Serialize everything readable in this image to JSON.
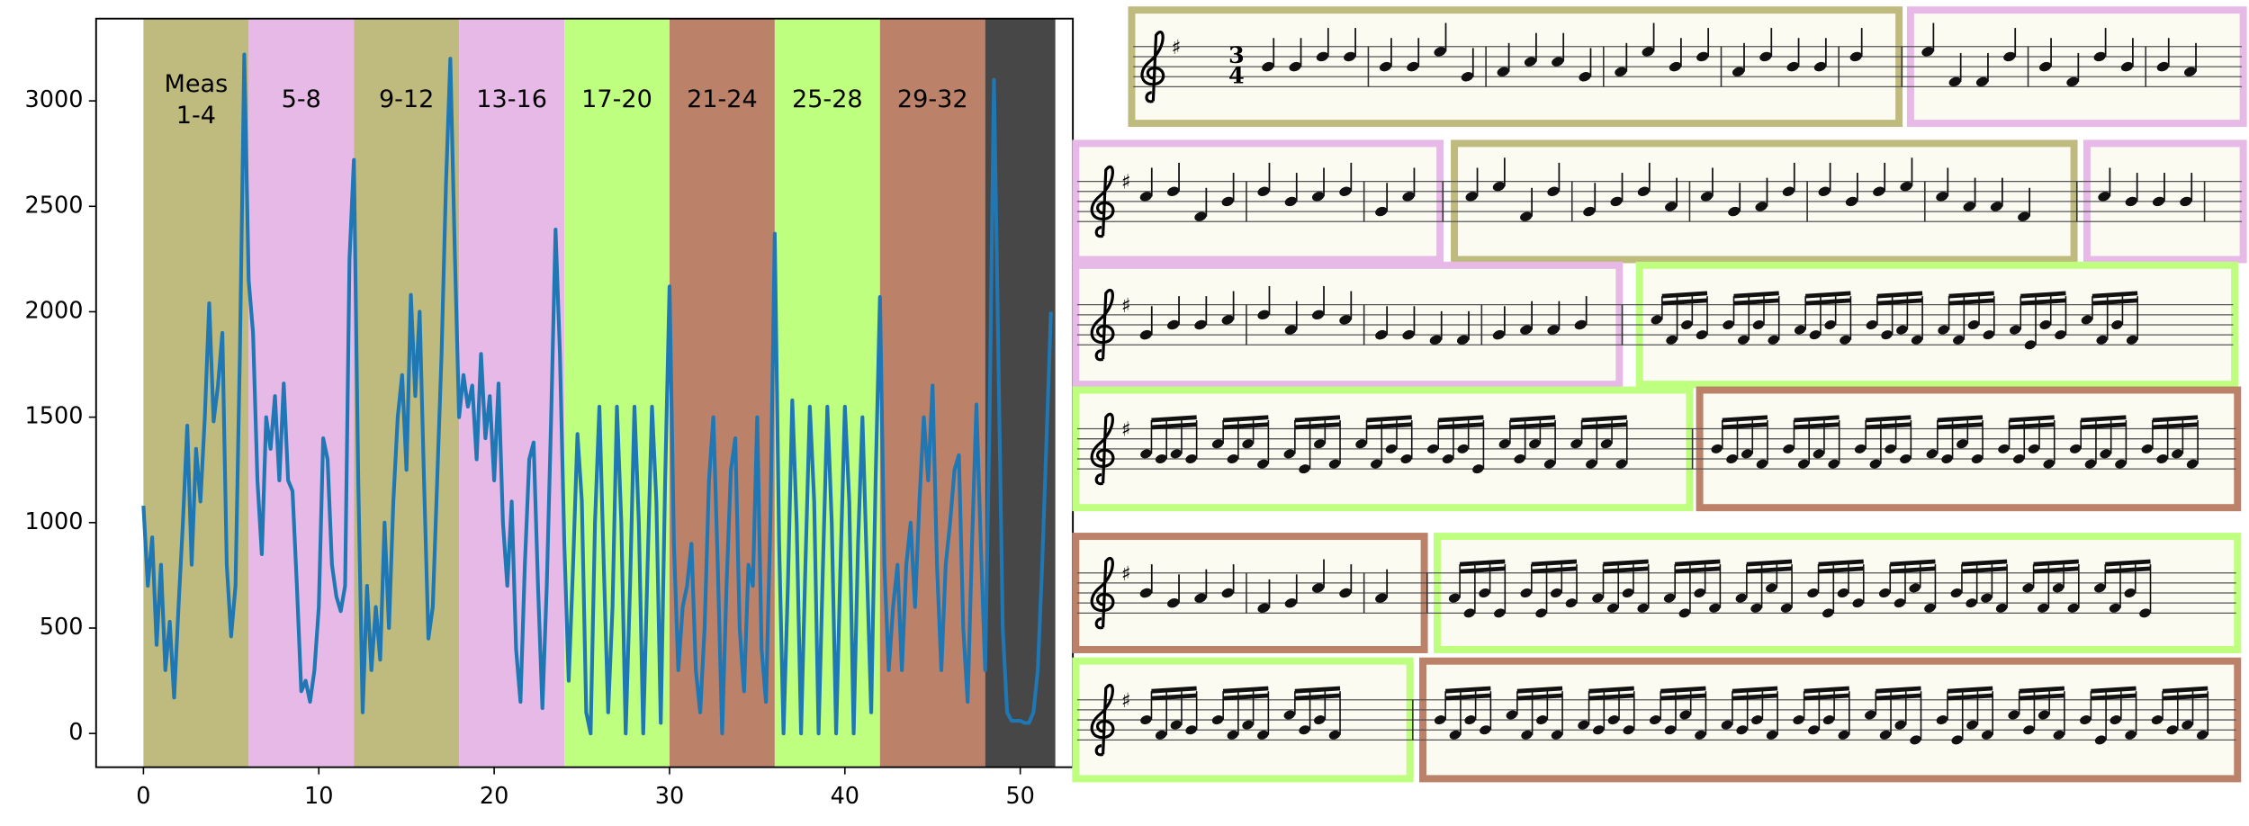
{
  "chart_data": {
    "type": "line",
    "xlim": [
      -2.7,
      53
    ],
    "ylim": [
      -160,
      3390
    ],
    "xticks": [
      0,
      10,
      20,
      30,
      40,
      50
    ],
    "yticks": [
      0,
      500,
      1000,
      1500,
      2000,
      2500,
      3000
    ],
    "bands": [
      {
        "start": 0,
        "end": 6,
        "label": "Meas\n1-4",
        "color": "#bfbb7e"
      },
      {
        "start": 6,
        "end": 12,
        "label": "5-8",
        "color": "#e6b9e6"
      },
      {
        "start": 12,
        "end": 18,
        "label": "9-12",
        "color": "#bfbb7e"
      },
      {
        "start": 18,
        "end": 24,
        "label": "13-16",
        "color": "#e6b9e6"
      },
      {
        "start": 24,
        "end": 30,
        "label": "17-20",
        "color": "#bfff7f"
      },
      {
        "start": 30,
        "end": 36,
        "label": "21-24",
        "color": "#bc8169"
      },
      {
        "start": 36,
        "end": 42,
        "label": "25-28",
        "color": "#bfff7f"
      },
      {
        "start": 42,
        "end": 48,
        "label": "29-32",
        "color": "#bc8169"
      },
      {
        "start": 48,
        "end": 52,
        "color": "#474747"
      }
    ],
    "x": [
      0,
      0.25,
      0.5,
      0.75,
      1,
      1.25,
      1.5,
      1.75,
      2,
      2.25,
      2.5,
      2.75,
      3,
      3.25,
      3.5,
      3.75,
      4,
      4.25,
      4.5,
      4.75,
      5,
      5.25,
      5.5,
      5.75,
      6,
      6.25,
      6.5,
      6.75,
      7,
      7.25,
      7.5,
      7.75,
      8,
      8.25,
      8.5,
      8.75,
      9,
      9.25,
      9.5,
      9.75,
      10,
      10.25,
      10.5,
      10.75,
      11,
      11.25,
      11.5,
      11.75,
      12,
      12.25,
      12.5,
      12.75,
      13,
      13.25,
      13.5,
      13.75,
      14,
      14.25,
      14.5,
      14.75,
      15,
      15.25,
      15.5,
      15.75,
      16,
      16.25,
      16.5,
      16.75,
      17,
      17.25,
      17.5,
      17.75,
      18,
      18.25,
      18.5,
      18.75,
      19,
      19.25,
      19.5,
      19.75,
      20,
      20.25,
      20.5,
      20.75,
      21,
      21.25,
      21.5,
      21.75,
      22,
      22.25,
      22.5,
      22.75,
      23,
      23.25,
      23.5,
      23.75,
      24,
      24.25,
      24.5,
      24.75,
      25,
      25.25,
      25.5,
      25.75,
      26,
      26.25,
      26.5,
      26.75,
      27,
      27.25,
      27.5,
      27.75,
      28,
      28.25,
      28.5,
      28.75,
      29,
      29.25,
      29.5,
      29.75,
      30,
      30.25,
      30.5,
      30.75,
      31,
      31.25,
      31.5,
      31.75,
      32,
      32.25,
      32.5,
      32.75,
      33,
      33.25,
      33.5,
      33.75,
      34,
      34.25,
      34.5,
      34.75,
      35,
      35.25,
      35.5,
      35.75,
      36,
      36.25,
      36.5,
      36.75,
      37,
      37.25,
      37.5,
      37.75,
      38,
      38.25,
      38.5,
      38.75,
      39,
      39.25,
      39.5,
      39.75,
      40,
      40.25,
      40.5,
      40.75,
      41,
      41.25,
      41.5,
      41.75,
      42,
      42.25,
      42.5,
      42.75,
      43,
      43.25,
      43.5,
      43.75,
      44,
      44.25,
      44.5,
      44.75,
      45,
      45.25,
      45.5,
      45.75,
      46,
      46.25,
      46.5,
      46.75,
      47,
      47.25,
      47.5,
      47.75,
      48,
      48.25,
      48.5,
      48.75,
      49,
      49.25,
      49.5,
      49.75,
      50,
      50.25,
      50.5,
      50.75,
      51,
      51.25,
      51.5,
      51.75
    ],
    "series": [
      {
        "color": "#1f77b4",
        "values": [
          1080,
          700,
          930,
          420,
          800,
          300,
          530,
          170,
          600,
          1000,
          1460,
          800,
          1350,
          1100,
          1500,
          2040,
          1480,
          1650,
          1900,
          800,
          460,
          700,
          1800,
          3220,
          2150,
          1900,
          1200,
          850,
          1500,
          1350,
          1600,
          1200,
          1660,
          1200,
          1150,
          700,
          200,
          250,
          150,
          300,
          600,
          1400,
          1300,
          800,
          650,
          580,
          700,
          2250,
          2720,
          1200,
          100,
          700,
          300,
          600,
          350,
          1000,
          500,
          1100,
          1500,
          1700,
          1250,
          2080,
          1600,
          2000,
          1200,
          450,
          600,
          1200,
          1800,
          2600,
          3200,
          2300,
          1500,
          1700,
          1550,
          1650,
          1300,
          1800,
          1400,
          1600,
          1200,
          1660,
          1000,
          700,
          1100,
          400,
          150,
          800,
          1300,
          1380,
          700,
          120,
          700,
          1500,
          2390,
          1800,
          900,
          250,
          800,
          1420,
          1100,
          100,
          0,
          1000,
          1550,
          800,
          100,
          600,
          1550,
          1000,
          0,
          700,
          1550,
          1000,
          0,
          800,
          1550,
          1100,
          50,
          1200,
          2120,
          900,
          300,
          600,
          700,
          900,
          300,
          100,
          500,
          1200,
          1500,
          800,
          0,
          700,
          1250,
          1400,
          500,
          200,
          800,
          700,
          1500,
          400,
          150,
          1000,
          2370,
          900,
          0,
          700,
          1580,
          1000,
          0,
          800,
          1550,
          1100,
          0,
          800,
          1550,
          1000,
          0,
          800,
          1550,
          1100,
          0,
          900,
          1500,
          800,
          100,
          1200,
          2070,
          800,
          300,
          600,
          800,
          300,
          800,
          1000,
          600,
          1100,
          1500,
          1200,
          1650,
          800,
          300,
          800,
          1000,
          1250,
          1320,
          500,
          150,
          900,
          1560,
          900,
          300,
          1500,
          3100,
          1800,
          500,
          100,
          60,
          60,
          60,
          50,
          50,
          100,
          300,
          800,
          1400,
          2000
        ]
      }
    ]
  },
  "score": {
    "time_signature": {
      "top": "3",
      "bottom": "4"
    }
  }
}
